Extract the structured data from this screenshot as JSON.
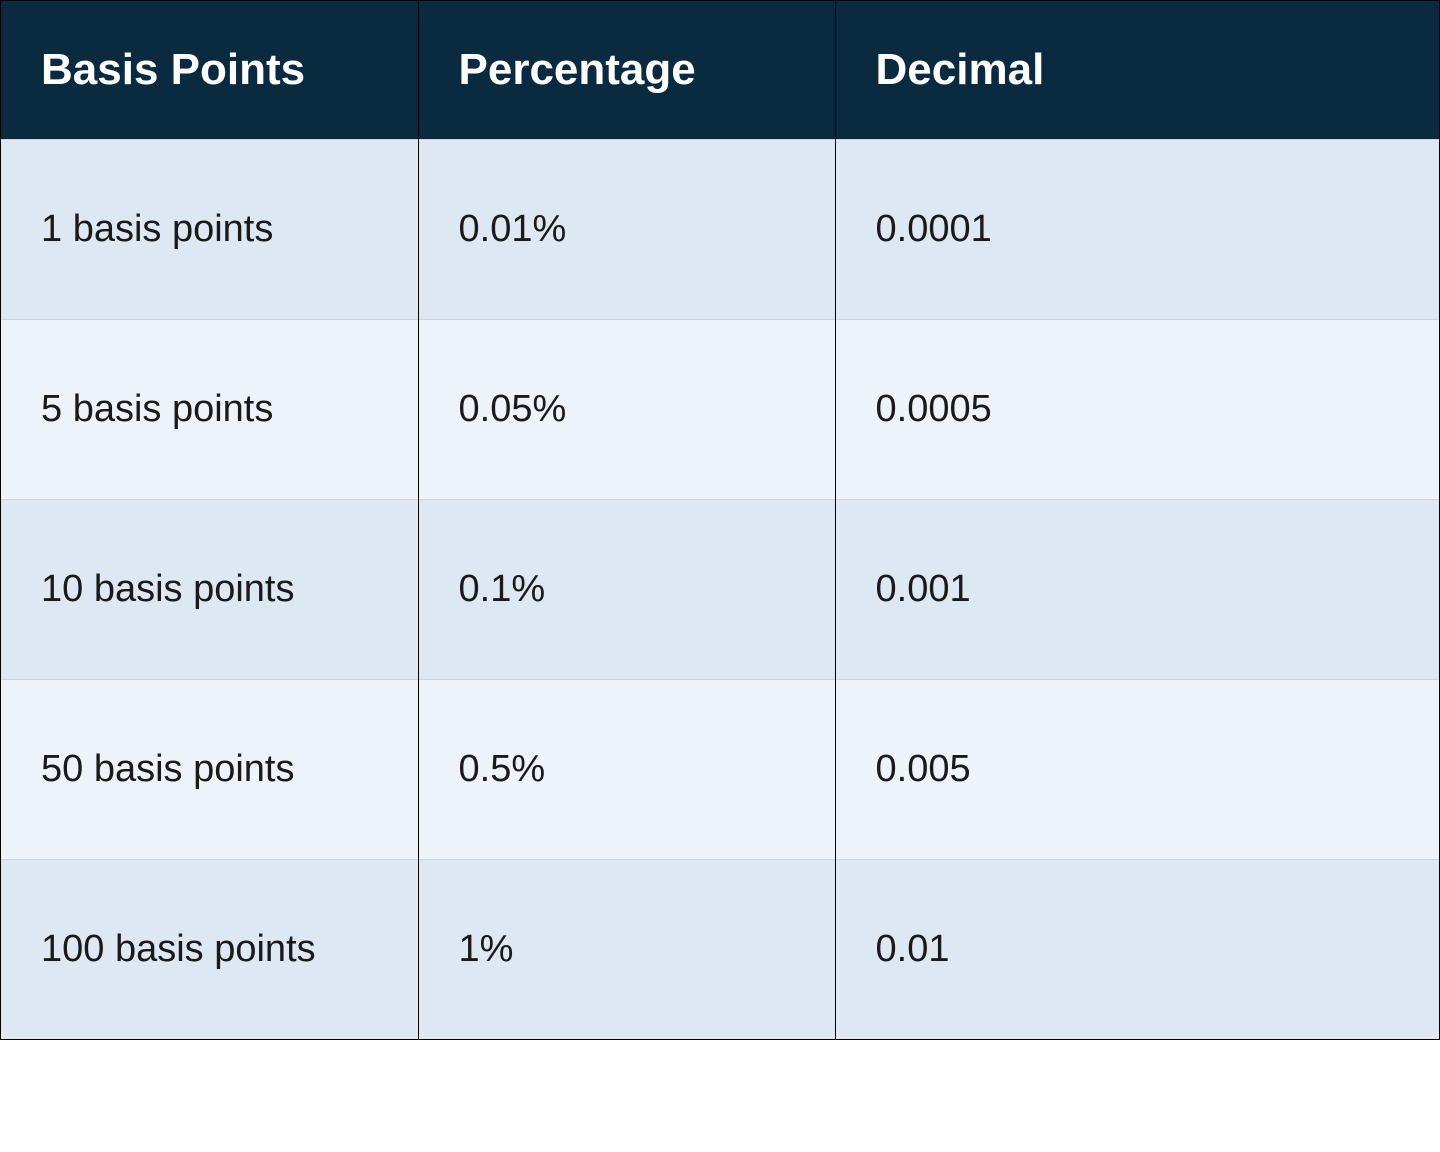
{
  "table": {
    "type": "table",
    "header_bg": "#0a2a40",
    "header_text_color": "#ffffff",
    "header_fontsize": 44,
    "header_fontweight": 700,
    "body_fontsize": 38,
    "body_text_color": "#1a1a1a",
    "row_even_bg": "#dde8f3",
    "row_odd_bg": "#eef3fa",
    "border_color": "#000000",
    "row_separator_color": "#c8d4e0",
    "column_widths_pct": [
      29,
      29,
      42
    ],
    "columns": [
      "Basis Points",
      "Percentage",
      "Decimal"
    ],
    "rows": [
      [
        "1 basis points",
        "0.01%",
        "0.0001"
      ],
      [
        "5 basis points",
        "0.05%",
        "0.0005"
      ],
      [
        "10 basis points",
        "0.1%",
        "0.001"
      ],
      [
        "50 basis points",
        "0.5%",
        "0.005"
      ],
      [
        "100 basis points",
        "1%",
        "0.01"
      ]
    ]
  }
}
